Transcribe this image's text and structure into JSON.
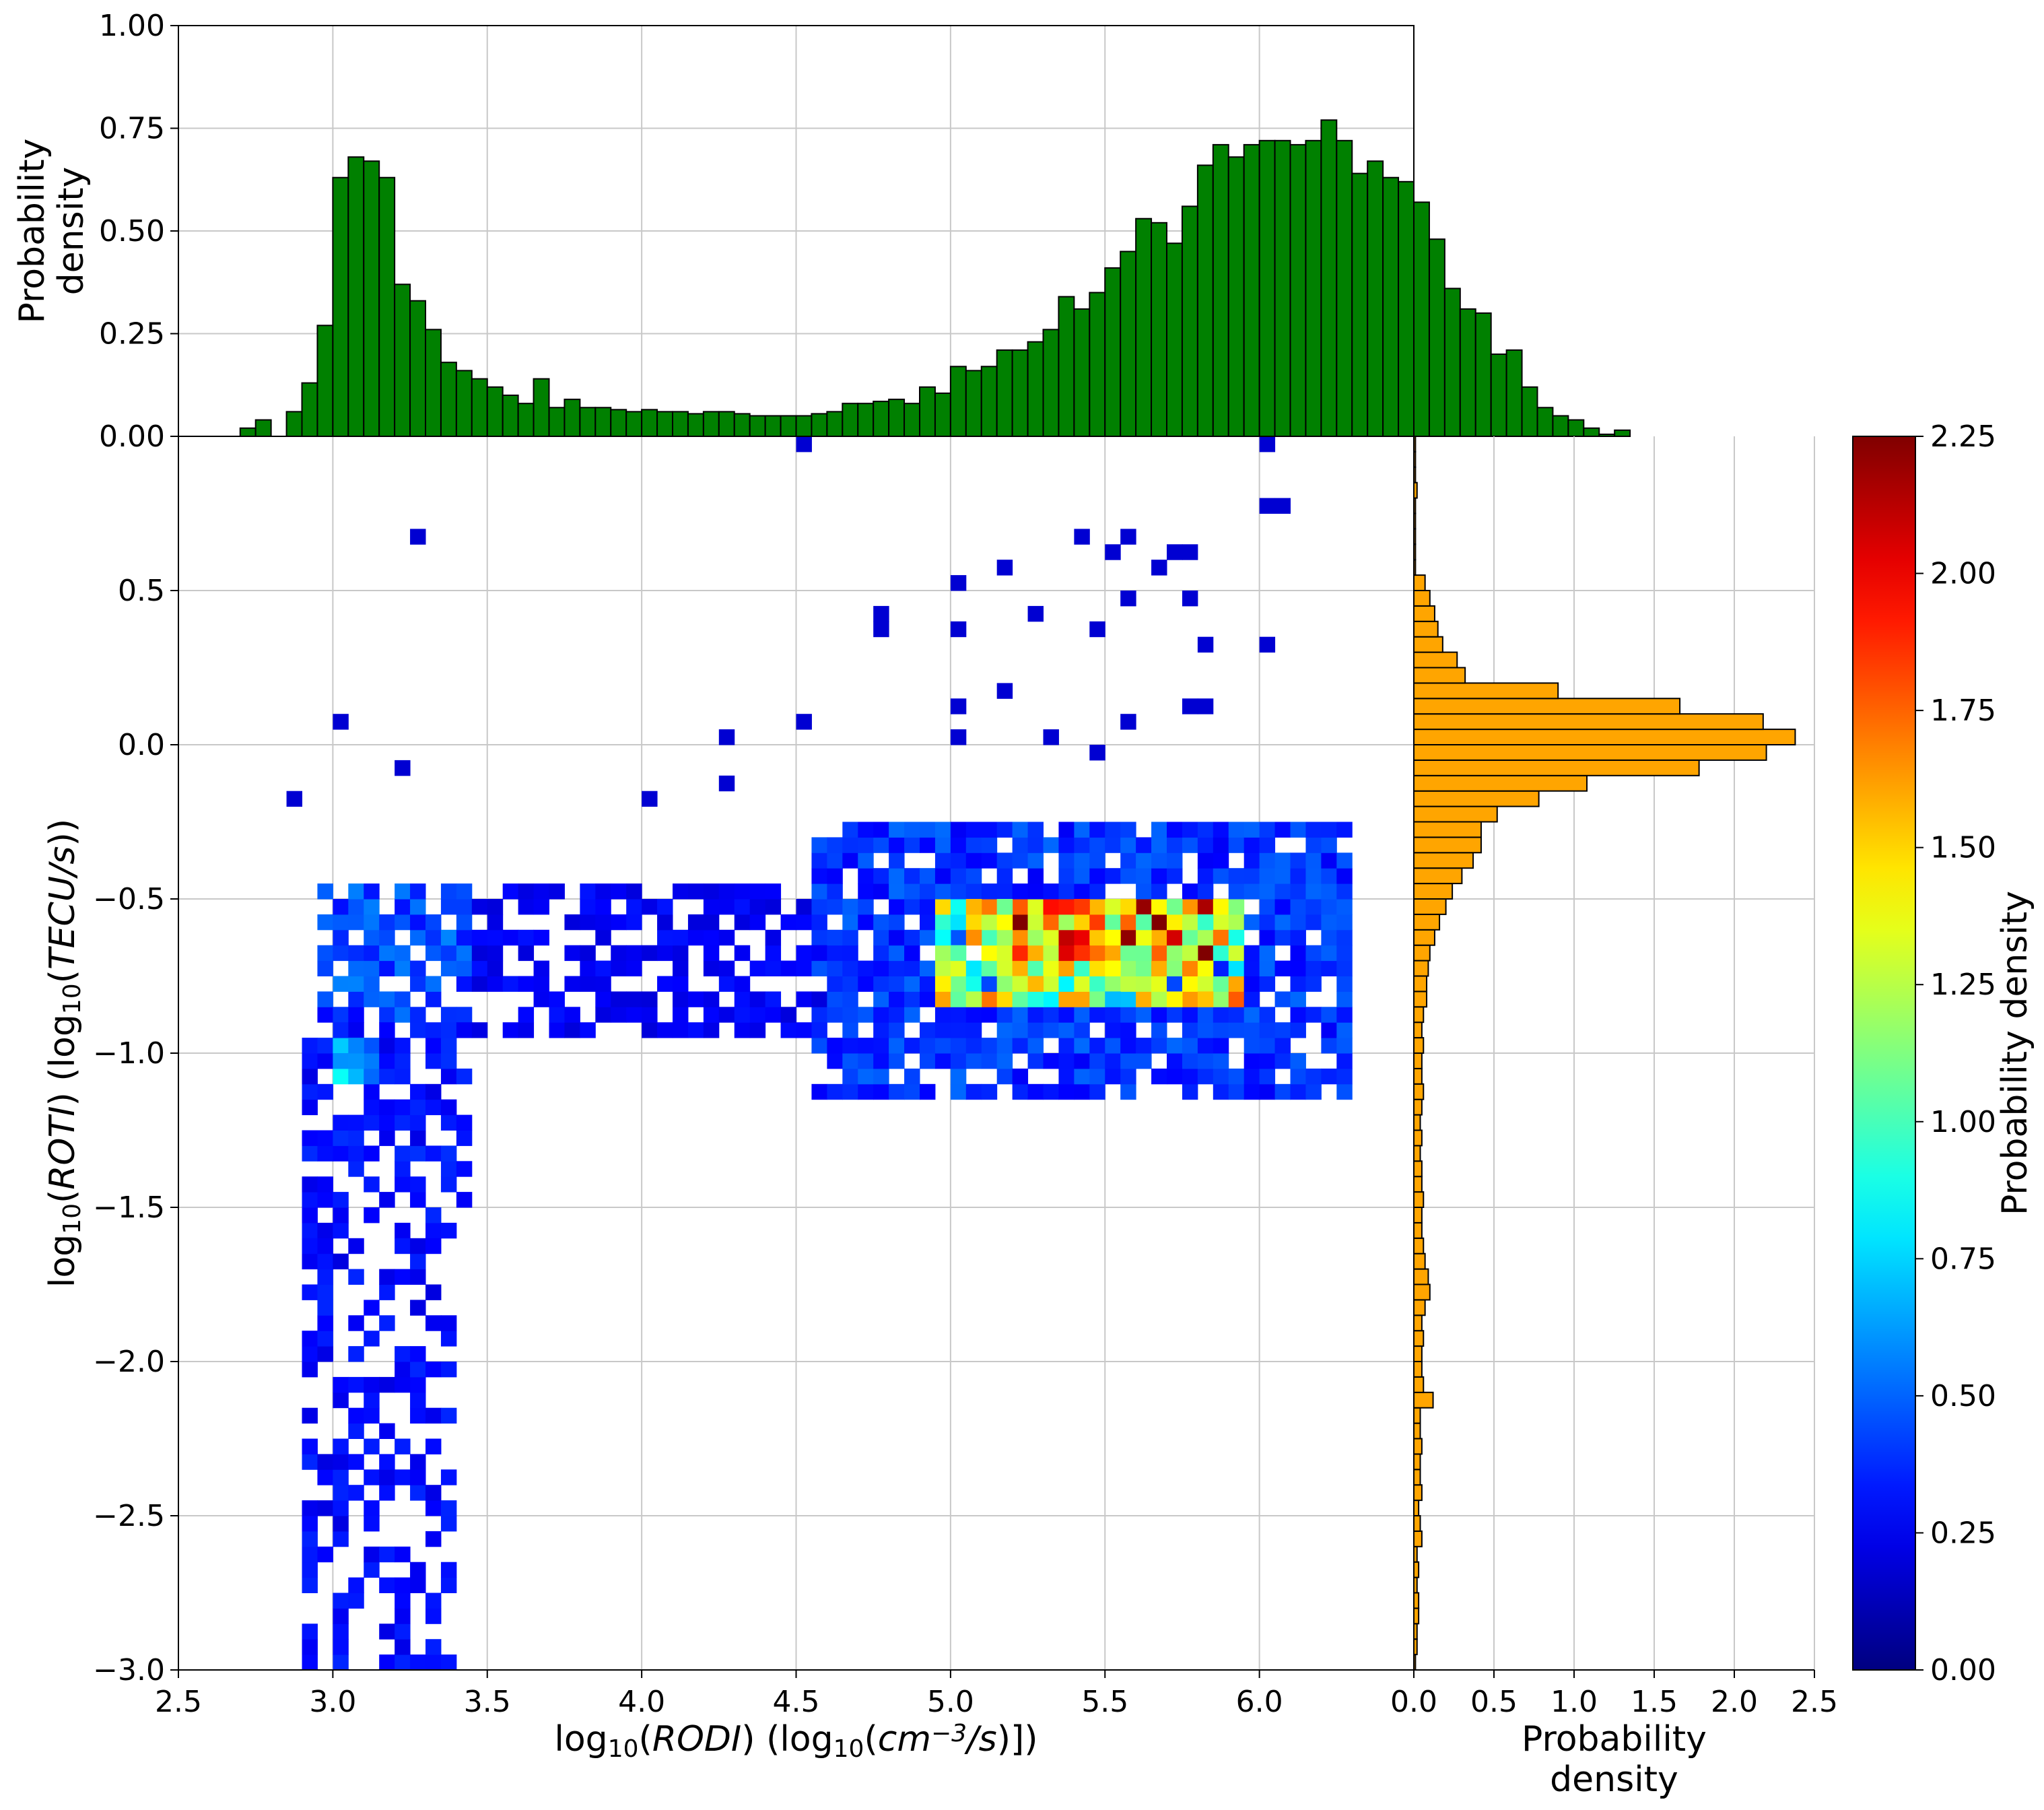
{
  "chart_data": [
    {
      "id": "top_histogram",
      "type": "bar",
      "color": "#008000",
      "edge_color": "#000000",
      "ylabel_lines": [
        "Probability",
        "density"
      ],
      "xlim": [
        2.5,
        6.5
      ],
      "ylim": [
        0.0,
        1.0
      ],
      "y_ticks": [
        "1.00",
        "0.75",
        "0.50",
        "0.25",
        "0.00"
      ],
      "y_tick_values": [
        1.0,
        0.75,
        0.5,
        0.25,
        0.0
      ],
      "grid": true,
      "bin_start": 2.7,
      "bin_width": 0.05,
      "values": [
        0.02,
        0.04,
        0.0,
        0.06,
        0.13,
        0.27,
        0.63,
        0.68,
        0.67,
        0.63,
        0.37,
        0.33,
        0.26,
        0.18,
        0.16,
        0.14,
        0.12,
        0.1,
        0.08,
        0.14,
        0.07,
        0.09,
        0.07,
        0.07,
        0.065,
        0.06,
        0.065,
        0.06,
        0.06,
        0.055,
        0.06,
        0.06,
        0.055,
        0.05,
        0.05,
        0.05,
        0.05,
        0.055,
        0.06,
        0.08,
        0.08,
        0.085,
        0.09,
        0.08,
        0.12,
        0.105,
        0.17,
        0.16,
        0.17,
        0.21,
        0.21,
        0.23,
        0.26,
        0.34,
        0.31,
        0.35,
        0.41,
        0.45,
        0.53,
        0.52,
        0.47,
        0.56,
        0.66,
        0.71,
        0.68,
        0.71,
        0.72,
        0.72,
        0.71,
        0.72,
        0.77,
        0.72,
        0.64,
        0.67,
        0.63,
        0.62,
        0.57,
        0.48,
        0.36,
        0.31,
        0.3,
        0.2,
        0.21,
        0.12,
        0.07,
        0.05,
        0.04,
        0.02,
        0.005,
        0.015
      ]
    },
    {
      "id": "hist2d",
      "type": "heatmap",
      "colormap": "jet",
      "xlabel": "log₁₀(RODI) (log₁₀(cm⁻³/s)])",
      "xlabel_parts": {
        "pre": "log",
        "sub1": "10",
        "mid1": "(",
        "it1": "RODI",
        "mid2": ") (log",
        "sub2": "10",
        "mid3": "(",
        "it2": "cm",
        "sup": "−3",
        "it3": "/s",
        "post": ")])"
      },
      "ylabel": "log₁₀(ROTI) (log₁₀(TECU/s))",
      "ylabel_parts": {
        "pre": "log",
        "sub1": "10",
        "mid1": "(",
        "it1": "ROTI",
        "mid2": ") (log",
        "sub2": "10",
        "mid3": "(",
        "it2": "TECU/s",
        "post": "))"
      },
      "xlim": [
        2.5,
        6.5
      ],
      "ylim": [
        -3.0,
        1.0
      ],
      "x_ticks": [
        "2.5",
        "3.0",
        "3.5",
        "4.0",
        "4.5",
        "5.0",
        "5.5",
        "6.0"
      ],
      "x_tick_values": [
        2.5,
        3.0,
        3.5,
        4.0,
        4.5,
        5.0,
        5.5,
        6.0
      ],
      "y_ticks": [
        "0.5",
        "0.0",
        "−0.5",
        "−1.0",
        "−1.5",
        "−2.0",
        "−2.5",
        "−3.0"
      ],
      "y_tick_values": [
        0.5,
        0.0,
        -0.5,
        -1.0,
        -1.5,
        -2.0,
        -2.5,
        -3.0
      ],
      "grid": true,
      "bin_width_x": 0.05,
      "bin_width_y": 0.05,
      "clusters": [
        {
          "x": [
            2.95,
            3.45
          ],
          "y": [
            -0.9,
            -0.45
          ],
          "density": 0.35,
          "fill": 0.75
        },
        {
          "x": [
            2.9,
            3.45
          ],
          "y": [
            -1.6,
            -0.9
          ],
          "density": 0.2,
          "fill": 0.55
        },
        {
          "x": [
            2.9,
            3.4
          ],
          "y": [
            -3.0,
            -1.6
          ],
          "density": 0.18,
          "fill": 0.5
        },
        {
          "x": [
            3.0,
            3.15
          ],
          "y": [
            -1.1,
            -0.95
          ],
          "density": 0.7,
          "fill": 0.8
        },
        {
          "x": [
            3.45,
            4.6
          ],
          "y": [
            -0.95,
            -0.45
          ],
          "density": 0.15,
          "fill": 0.55
        },
        {
          "x": [
            4.55,
            6.3
          ],
          "y": [
            -1.15,
            -0.25
          ],
          "density": 0.3,
          "fill": 0.8
        },
        {
          "x": [
            4.95,
            5.95
          ],
          "y": [
            -0.85,
            -0.5
          ],
          "density": 1.3,
          "fill": 0.95
        },
        {
          "x": [
            5.2,
            5.85
          ],
          "y": [
            -0.7,
            -0.5
          ],
          "density": 1.8,
          "fill": 0.95
        }
      ],
      "scatter": [
        [
          3.25,
          0.67
        ],
        [
          4.5,
          0.97
        ],
        [
          6.05,
          0.97
        ],
        [
          6.05,
          0.77
        ],
        [
          6.1,
          0.77
        ],
        [
          5.4,
          0.68
        ],
        [
          5.6,
          0.68
        ],
        [
          5.5,
          0.63
        ],
        [
          5.7,
          0.63
        ],
        [
          5.8,
          0.63
        ],
        [
          5.15,
          0.57
        ],
        [
          5.05,
          0.53
        ],
        [
          5.65,
          0.55
        ],
        [
          5.6,
          0.47
        ],
        [
          5.8,
          0.47
        ],
        [
          4.8,
          0.43
        ],
        [
          4.75,
          0.38
        ],
        [
          5.05,
          0.38
        ],
        [
          5.3,
          0.42
        ],
        [
          5.45,
          0.37
        ],
        [
          5.85,
          0.33
        ],
        [
          6.05,
          0.33
        ],
        [
          5.15,
          0.17
        ],
        [
          5.05,
          0.12
        ],
        [
          4.55,
          0.08
        ],
        [
          3.0,
          0.08
        ],
        [
          5.6,
          0.08
        ],
        [
          5.75,
          0.12
        ],
        [
          5.85,
          0.12
        ],
        [
          5.35,
          0.02
        ],
        [
          5.0,
          0.0
        ],
        [
          4.25,
          0.0
        ],
        [
          5.45,
          -0.02
        ],
        [
          4.25,
          -0.12
        ],
        [
          2.9,
          -0.17
        ],
        [
          4.05,
          -0.17
        ],
        [
          3.2,
          -0.06
        ]
      ],
      "colorbar": {
        "label": "Probability density",
        "range": [
          0.0,
          2.25
        ],
        "ticks": [
          "2.25",
          "2.00",
          "1.75",
          "1.50",
          "1.25",
          "1.00",
          "0.75",
          "0.50",
          "0.25",
          "0.00"
        ],
        "tick_values": [
          2.25,
          2.0,
          1.75,
          1.5,
          1.25,
          1.0,
          0.75,
          0.5,
          0.25,
          0.0
        ]
      }
    },
    {
      "id": "right_histogram",
      "type": "bar",
      "orientation": "horizontal",
      "color": "#FFA500",
      "edge_color": "#000000",
      "xlabel_lines": [
        "Probability",
        "density"
      ],
      "xlim": [
        0.0,
        2.5
      ],
      "ylim": [
        -3.0,
        1.0
      ],
      "x_ticks": [
        "0.0",
        "0.5",
        "1.0",
        "1.5",
        "2.0",
        "2.5"
      ],
      "x_tick_values": [
        0.0,
        0.5,
        1.0,
        1.5,
        2.0,
        2.5
      ],
      "grid": true,
      "bin_start": -3.0,
      "bin_width": 0.05,
      "values": [
        0.01,
        0.02,
        0.02,
        0.03,
        0.03,
        0.02,
        0.03,
        0.02,
        0.05,
        0.04,
        0.03,
        0.05,
        0.04,
        0.04,
        0.05,
        0.04,
        0.04,
        0.12,
        0.06,
        0.05,
        0.05,
        0.06,
        0.05,
        0.07,
        0.1,
        0.09,
        0.07,
        0.06,
        0.05,
        0.05,
        0.06,
        0.05,
        0.05,
        0.04,
        0.05,
        0.04,
        0.05,
        0.06,
        0.05,
        0.05,
        0.06,
        0.05,
        0.06,
        0.08,
        0.08,
        0.09,
        0.1,
        0.13,
        0.16,
        0.2,
        0.24,
        0.3,
        0.37,
        0.42,
        0.42,
        0.52,
        0.78,
        1.08,
        1.78,
        2.2,
        2.38,
        2.18,
        1.66,
        0.9,
        0.32,
        0.27,
        0.18,
        0.15,
        0.13,
        0.1,
        0.07,
        0.01,
        0.01,
        0.01,
        0.01,
        0.01,
        0.02,
        0.01,
        0.01,
        0.01
      ]
    }
  ]
}
